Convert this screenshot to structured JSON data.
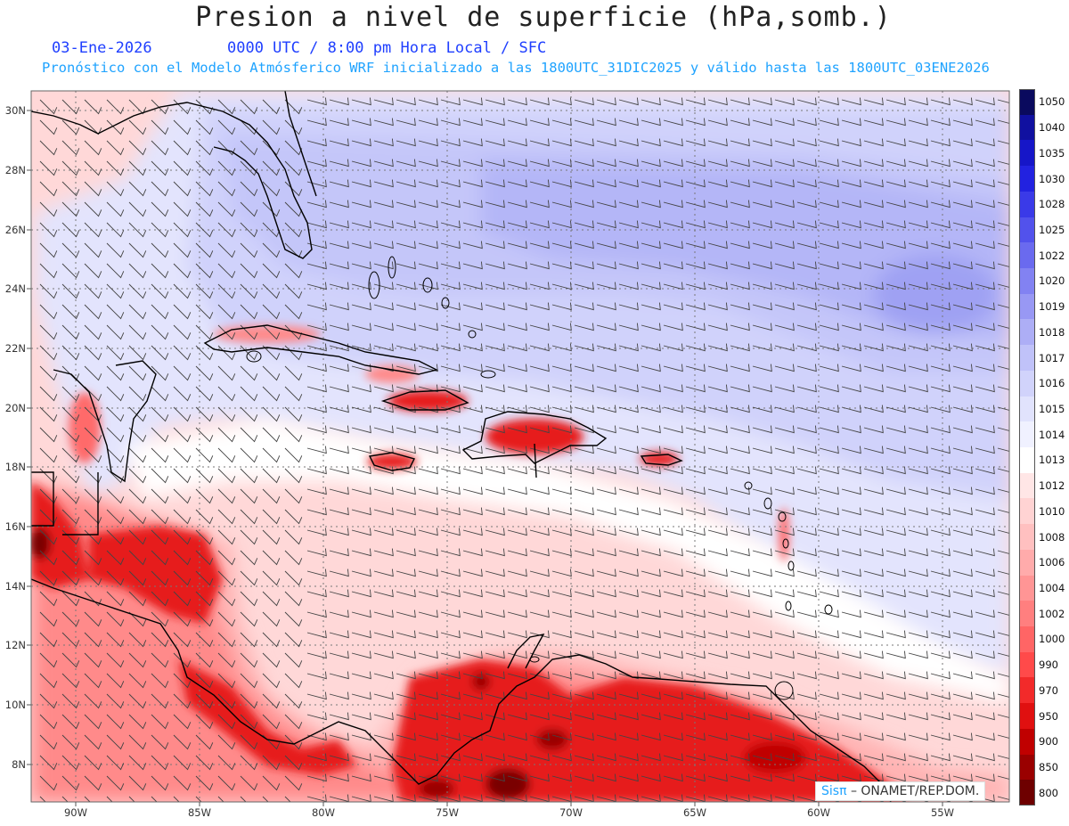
{
  "title": "Presion a nivel de superficie (hPa,somb.)",
  "date": "03-Ene-2026",
  "utc_line": "0000 UTC / 8:00 pm Hora Local / SFC",
  "forecast_line": "Pronóstico con el Modelo Atmósferico WRF inicializado a las 1800UTC_31DIC2025 y válido hasta las  1800UTC_03ENE2026",
  "map": {
    "lat_labels": [
      "30N",
      "28N",
      "26N",
      "24N",
      "22N",
      "20N",
      "18N",
      "16N",
      "14N",
      "12N",
      "10N",
      "8N"
    ],
    "lon_labels": [
      "90W",
      "85W",
      "80W",
      "75W",
      "70W",
      "65W",
      "60W",
      "55W"
    ],
    "colors": {
      "high": "#a6a6f0",
      "mid_high": "#d3d5fb",
      "neutral": "#ffffff",
      "low": "#ffd3d3",
      "very_low": "#e8242a",
      "extreme": "#7a0000"
    }
  },
  "legend": {
    "levels": [
      "1050",
      "1040",
      "1035",
      "1030",
      "1028",
      "1025",
      "1022",
      "1020",
      "1019",
      "1018",
      "1017",
      "1016",
      "1015",
      "1014",
      "1013",
      "1012",
      "1010",
      "1008",
      "1006",
      "1004",
      "1002",
      "1000",
      "990",
      "970",
      "950",
      "900",
      "850",
      "800"
    ],
    "colors": [
      "#0a0a5e",
      "#1010a0",
      "#1616c8",
      "#2222e0",
      "#3a3ae8",
      "#5252ec",
      "#6a6aef",
      "#8282f2",
      "#9898f4",
      "#adaef6",
      "#c0c2f9",
      "#d1d3fb",
      "#e1e3fd",
      "#f0f1ff",
      "#ffffff",
      "#ffe6e6",
      "#ffd3d3",
      "#ffc0c0",
      "#ffabab",
      "#ff9595",
      "#ff7f7f",
      "#ff6565",
      "#ff4a4a",
      "#f22a2a",
      "#e01010",
      "#c00000",
      "#9a0000",
      "#6e0000"
    ]
  },
  "credit": {
    "brand": "Sisπ",
    "text": " – ONAMET/REP.DOM."
  }
}
